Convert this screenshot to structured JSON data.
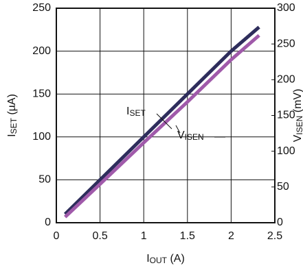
{
  "chart_data": {
    "type": "line",
    "xlabel": [
      "I",
      "OUT",
      " (A)"
    ],
    "ylabel": [
      "I",
      "SET",
      " (µA)"
    ],
    "y2label": [
      "V",
      "ISEN",
      " (mV)"
    ],
    "x": [
      0.1,
      0.5,
      1,
      1.5,
      2,
      2.32
    ],
    "series": [
      {
        "name": [
          "I",
          "SET"
        ],
        "color": "#2e2d5c",
        "values": [
          10,
          50,
          100,
          150,
          200,
          228
        ]
      },
      {
        "name": [
          "V",
          "ISEN"
        ],
        "color": "#a05aaa",
        "axis": "y2",
        "values": [
          8,
          54,
          112,
          169,
          228,
          262
        ]
      }
    ],
    "xlim": [
      0,
      2.5
    ],
    "xticks": [
      0,
      0.5,
      1,
      1.5,
      2,
      2.5
    ],
    "ylim": [
      0,
      250
    ],
    "yticks": [
      0,
      50,
      100,
      150,
      200,
      250
    ],
    "y2lim": [
      0,
      300
    ],
    "y2ticks": [
      0,
      50,
      100,
      150,
      200,
      250,
      300
    ],
    "grid": true
  }
}
